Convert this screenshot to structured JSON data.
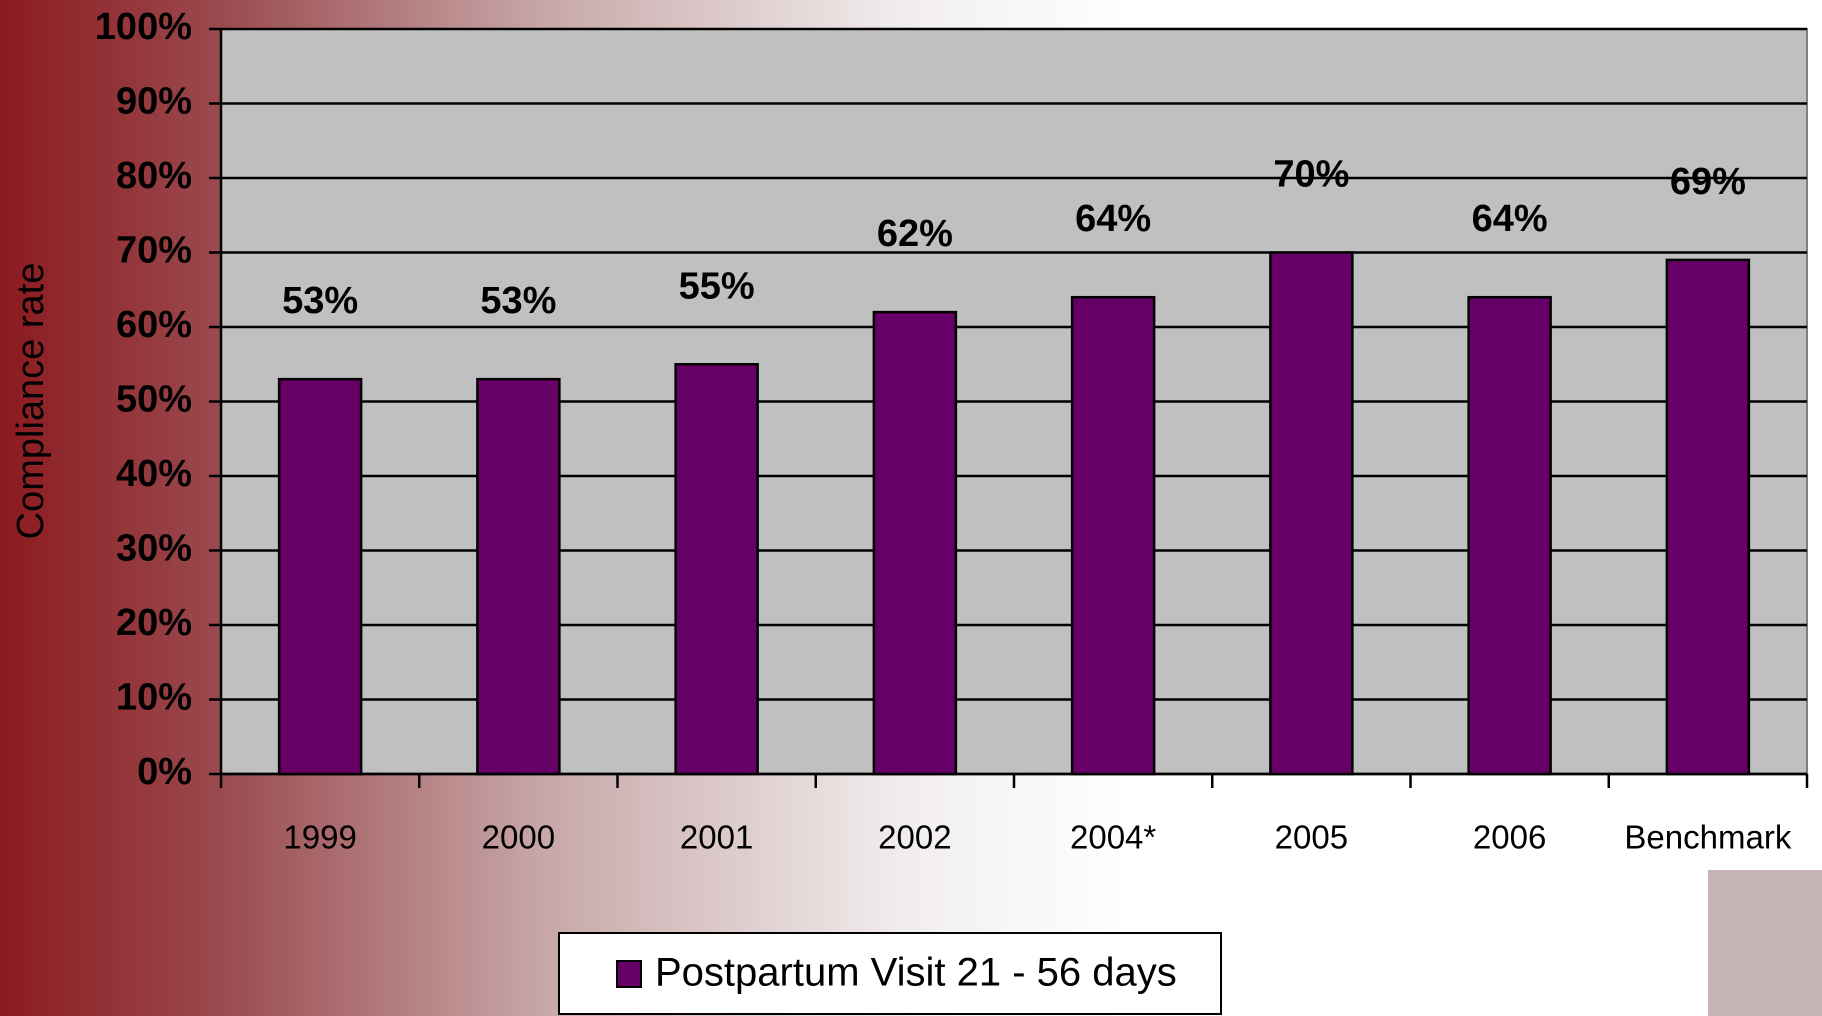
{
  "chart_data": {
    "type": "bar",
    "y_axis_label": "Compliance rate",
    "categories": [
      "1999",
      "2000",
      "2001",
      "2002",
      "2004*",
      "2005",
      "2006",
      "Benchmark"
    ],
    "series": [
      {
        "name": "Postpartum Visit 21 - 56 days",
        "color": "#660066",
        "values": [
          53,
          53,
          55,
          62,
          64,
          70,
          64,
          69
        ],
        "value_labels": [
          "53%",
          "53%",
          "55%",
          "62%",
          "64%",
          "70%",
          "64%",
          "69%"
        ]
      }
    ],
    "ylim": [
      0,
      100
    ],
    "yticks": [
      {
        "value": 0,
        "label": "0%"
      },
      {
        "value": 10,
        "label": "10%"
      },
      {
        "value": 20,
        "label": "20%"
      },
      {
        "value": 30,
        "label": "30%"
      },
      {
        "value": 40,
        "label": "40%"
      },
      {
        "value": 50,
        "label": "50%"
      },
      {
        "value": 60,
        "label": "60%"
      },
      {
        "value": 70,
        "label": "70%"
      },
      {
        "value": 80,
        "label": "80%"
      },
      {
        "value": 90,
        "label": "90%"
      },
      {
        "value": 100,
        "label": "100%"
      }
    ],
    "grid": true,
    "legend": "bottom"
  }
}
